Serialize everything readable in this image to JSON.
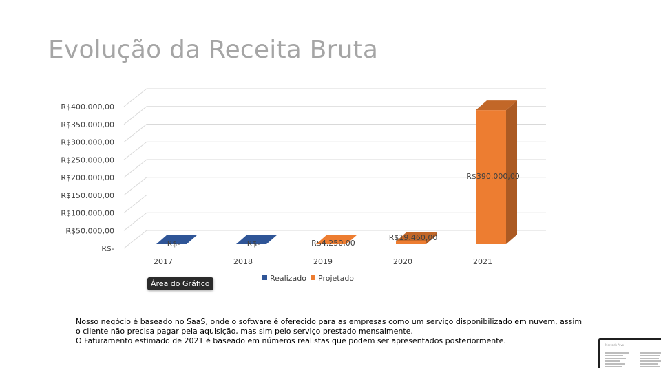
{
  "slide": {
    "title": "Evolução da Receita Bruta",
    "tooltip": "Área do Gráfico",
    "description_lines": [
      "Nosso negócio é baseado no SaaS, onde o software é oferecido para as empresas como um serviço disponibilizado em nuvem, assim o cliente não precisa pagar pela aquisição, mas sim pelo serviço prestado mensalmente.",
      "O Faturamento estimado de 2021 é baseado em números realistas que podem ser apresentados posteriormente."
    ],
    "thumbnail_title": "Mercado Alvo"
  },
  "chart_data": {
    "type": "bar",
    "title": "",
    "xlabel": "",
    "ylabel": "",
    "categories": [
      "2017",
      "2018",
      "2019",
      "2020",
      "2021"
    ],
    "ylim": [
      0,
      400000
    ],
    "y_tick_labels": [
      "R$-",
      "R$50.000,00",
      "R$100.000,00",
      "R$150.000,00",
      "R$200.000,00",
      "R$250.000,00",
      "R$300.000,00",
      "R$350.000,00",
      "R$400.000,00"
    ],
    "values": [
      0,
      0,
      4250,
      19460,
      390000
    ],
    "series_of_point": [
      "Realizado",
      "Realizado",
      "Projetado",
      "Projetado",
      "Projetado"
    ],
    "data_labels": [
      "R$-",
      "R$-",
      "R$4.250,00",
      "R$19.460,00",
      "R$390.000,00"
    ],
    "legend": [
      {
        "name": "Realizado",
        "color": "#2f5597"
      },
      {
        "name": "Projetado",
        "color": "#ed7d31"
      }
    ],
    "legend_position": "bottom",
    "grid": true
  }
}
